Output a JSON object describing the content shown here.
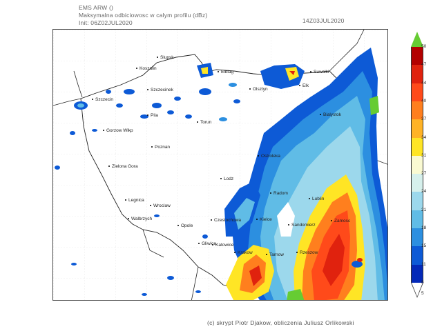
{
  "header": {
    "model": "EMS ARW ()",
    "field": "Maksymalna odbiciowosc w calym profilu (dBz)",
    "init": "Init: 06Z02JUL2020",
    "valid": "14Z03JUL2020"
  },
  "footer": "(c) skrypt Piotr Djakow, obliczenia Juliusz Orlikowski",
  "legend": {
    "unit": "dBz",
    "levels": [
      {
        "value": "50",
        "color": "#66cc33"
      },
      {
        "value": "47",
        "color": "#b30000"
      },
      {
        "value": "44",
        "color": "#e0220e"
      },
      {
        "value": "40",
        "color": "#ff4a1a"
      },
      {
        "value": "37",
        "color": "#ff7f1e"
      },
      {
        "value": "34",
        "color": "#ffb326"
      },
      {
        "value": "31",
        "color": "#ffe525"
      },
      {
        "value": "27",
        "color": "#fafad2"
      },
      {
        "value": "24",
        "color": "#d6f0ec"
      },
      {
        "value": "21",
        "color": "#9cd8ec"
      },
      {
        "value": "18",
        "color": "#60bce6"
      },
      {
        "value": "15",
        "color": "#2c8fe0"
      },
      {
        "value": "11",
        "color": "#0d5ad6"
      },
      {
        "value": "8",
        "color": "#0429b8"
      },
      {
        "value": "5",
        "color": "#ffffff"
      }
    ]
  },
  "cities": [
    {
      "name": "Slupsk"
    },
    {
      "name": "Koszalin"
    },
    {
      "name": "Elblag"
    },
    {
      "name": "Suwalki"
    },
    {
      "name": "Olsztyn"
    },
    {
      "name": "Elk"
    },
    {
      "name": "Szczecinek"
    },
    {
      "name": "Szczecin"
    },
    {
      "name": "Bialystok"
    },
    {
      "name": "Pila"
    },
    {
      "name": "Torun"
    },
    {
      "name": "Gorzow Wlkp"
    },
    {
      "name": "Poznan"
    },
    {
      "name": "Ostroleka"
    },
    {
      "name": "Zielona Gora"
    },
    {
      "name": "Lodz"
    },
    {
      "name": "Radom"
    },
    {
      "name": "Lublin"
    },
    {
      "name": "Legnica"
    },
    {
      "name": "Wroclaw"
    },
    {
      "name": "Walbrzych"
    },
    {
      "name": "Czestochowa"
    },
    {
      "name": "Kielce"
    },
    {
      "name": "Zamosc"
    },
    {
      "name": "Sandomierz"
    },
    {
      "name": "Opole"
    },
    {
      "name": "Gliwice"
    },
    {
      "name": "Katowice"
    },
    {
      "name": "Krakow"
    },
    {
      "name": "Tarnow"
    },
    {
      "name": "Rzeszow"
    }
  ]
}
